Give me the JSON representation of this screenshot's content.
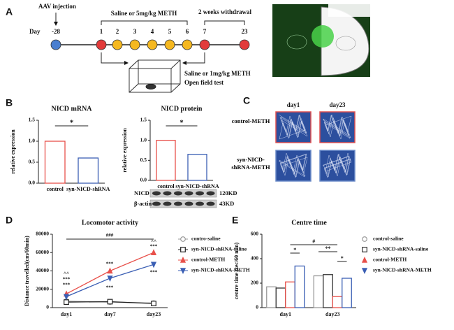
{
  "panel_labels": [
    "A",
    "B",
    "C",
    "D",
    "E"
  ],
  "timeline": {
    "injection": "AAV injection",
    "day_label": "Day",
    "days": [
      "-28",
      "1",
      "2",
      "3",
      "4",
      "5",
      "6",
      "7",
      "23"
    ],
    "day_colors": [
      "#4a7fd0",
      "#e23b3b",
      "#f5b820",
      "#f5b820",
      "#f5b820",
      "#f5b820",
      "#f5b820",
      "#e23b3b",
      "#e23b3b"
    ],
    "treatment": "Saline or 5mg/kg METH",
    "withdrawal": "2 weeks withdrawal",
    "test_treatment": "Saline or 1mg/kg METH",
    "test": "Open field test"
  },
  "tracks": {
    "columns": [
      "day1",
      "day23"
    ],
    "rows": [
      "control-METH",
      "syn-NICD-shRNA-METH"
    ]
  },
  "blot": {
    "rows": [
      {
        "name": "NICD",
        "size": "120KD"
      },
      {
        "name": "β-actin",
        "size": "43KD"
      }
    ]
  },
  "chart_data": [
    {
      "type": "bar",
      "title": "NICD mRNA",
      "y_label": "relative expression",
      "categories": [
        "control",
        "syn-NICD-shRNA"
      ],
      "values": [
        1.0,
        0.6
      ],
      "colors": [
        "#e8504a",
        "#3b5fb4"
      ],
      "ylim": [
        0,
        1.5
      ],
      "yticks": [
        {
          "value": 0,
          "label": "0.0"
        },
        {
          "value": 0.5,
          "label": "0.5"
        },
        {
          "value": 1,
          "label": "1.0"
        },
        {
          "value": 1.5,
          "label": "1.5"
        }
      ],
      "significance": "*"
    },
    {
      "type": "bar",
      "title": "NICD protein",
      "y_label": "relative expression",
      "categories": [
        "control",
        "syn-NICD-shRNA"
      ],
      "values": [
        1.0,
        0.65
      ],
      "colors": [
        "#e8504a",
        "#3b5fb4"
      ],
      "ylim": [
        0,
        1.5
      ],
      "yticks": [
        {
          "value": 0,
          "label": "0.0"
        },
        {
          "value": 0.5,
          "label": "0.5"
        },
        {
          "value": 1,
          "label": "1.0"
        },
        {
          "value": 1.5,
          "label": "1.5"
        }
      ],
      "significance": "*"
    },
    {
      "type": "line",
      "title": "Locomotor activity",
      "y_label": "Distance travelled(cm/60min)",
      "categories": [
        "day1",
        "day7",
        "day23"
      ],
      "ylim": [
        0,
        80000
      ],
      "yticks": [
        0,
        20000,
        40000,
        60000,
        80000
      ],
      "series": [
        {
          "name": "contro-saline",
          "color": "#999999",
          "marker": "circle",
          "values": [
            7000,
            6000,
            5000
          ]
        },
        {
          "name": "syn-NICD-shRNA-saline",
          "color": "#222222",
          "marker": "square",
          "values": [
            6000,
            6500,
            4500
          ]
        },
        {
          "name": "control-METH",
          "color": "#e8504a",
          "marker": "triangle",
          "values": [
            15000,
            40000,
            60000
          ]
        },
        {
          "name": "syn-NICD-shRNA-METH",
          "color": "#3b5fb4",
          "marker": "triangle-down",
          "values": [
            12000,
            32000,
            47000
          ]
        }
      ],
      "annotations": [
        "###",
        "^^",
        "***",
        "***",
        "***",
        "***",
        "^^",
        "***",
        "***"
      ]
    },
    {
      "type": "grouped_bar",
      "title": "Centre time",
      "y_label": "centre time (sec/60 min)",
      "categories": [
        "day1",
        "day23"
      ],
      "ylim": [
        0,
        600
      ],
      "yticks": [
        0,
        200,
        400,
        600
      ],
      "series": [
        {
          "name": "control-saline",
          "color": "#999999",
          "marker": "circle",
          "values": [
            170,
            260
          ]
        },
        {
          "name": "syn-NICD-shRNA-saline",
          "color": "#333333",
          "marker": "square",
          "values": [
            160,
            270
          ]
        },
        {
          "name": "control-METH",
          "color": "#e8504a",
          "marker": "triangle",
          "values": [
            210,
            90
          ]
        },
        {
          "name": "syn-NICD-shRNA-METH",
          "color": "#3b5fb4",
          "marker": "triangle-down",
          "values": [
            340,
            240
          ]
        }
      ],
      "annotations": [
        "#",
        "*",
        "**",
        "*"
      ]
    }
  ]
}
